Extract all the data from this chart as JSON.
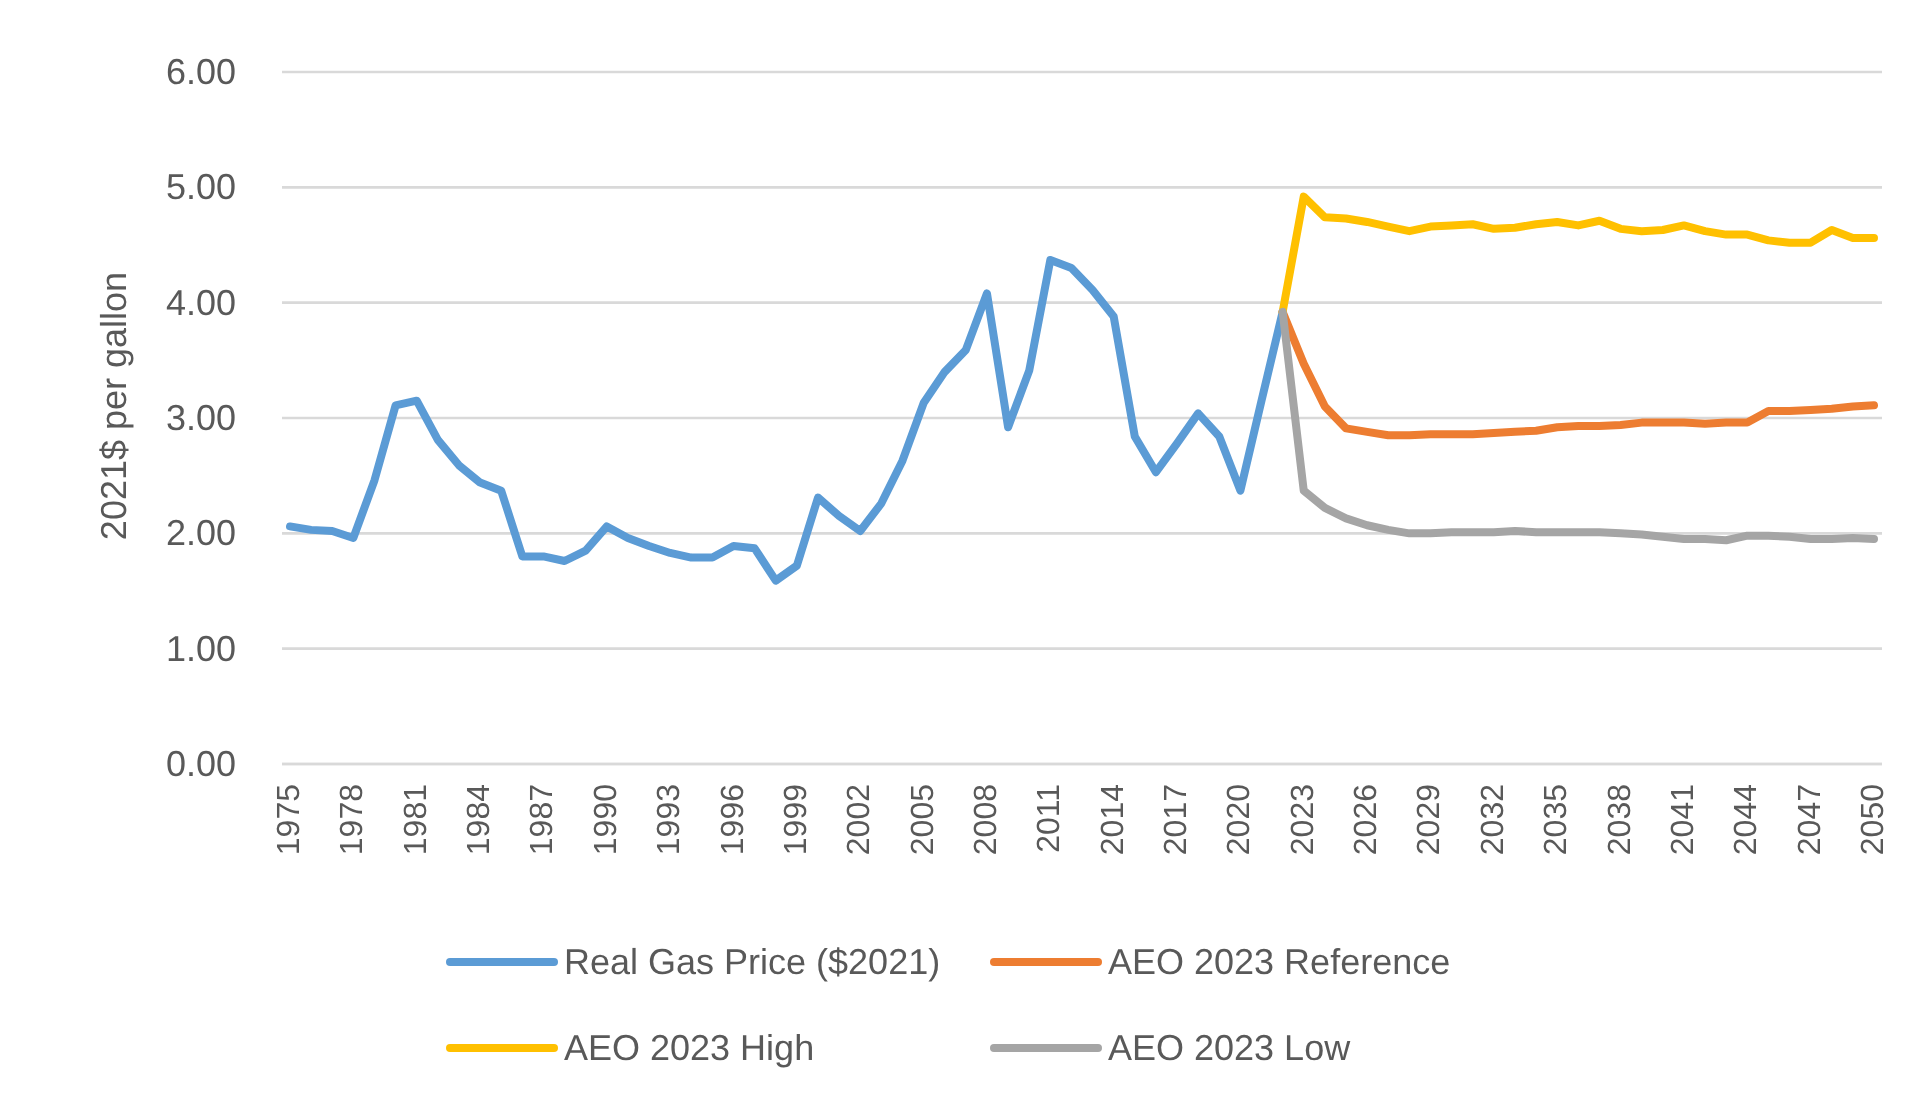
{
  "chart_data": {
    "type": "line",
    "ylabel": "2021$ per gallon",
    "categories": [
      "1975",
      null,
      null,
      "1978",
      null,
      null,
      "1981",
      null,
      null,
      "1984",
      null,
      null,
      "1987",
      null,
      null,
      "1990",
      null,
      null,
      "1993",
      null,
      null,
      "1996",
      null,
      null,
      "1999",
      null,
      null,
      "2002",
      null,
      null,
      "2005",
      null,
      null,
      "2008",
      null,
      null,
      "2011",
      null,
      null,
      "2014",
      null,
      null,
      "2017",
      null,
      null,
      "2020",
      null,
      null,
      "2023",
      null,
      null,
      "2026",
      null,
      null,
      "2029",
      null,
      null,
      "2032",
      null,
      null,
      "2035",
      null,
      null,
      "2038",
      null,
      null,
      "2041",
      null,
      null,
      "2044",
      null,
      null,
      "2047",
      null,
      null,
      "2050"
    ],
    "series": [
      {
        "name": "Real Gas Price ($2021)",
        "color": "#5b9bd5",
        "values": [
          2.06,
          2.03,
          2.02,
          1.96,
          2.46,
          3.11,
          3.15,
          2.81,
          2.59,
          2.44,
          2.37,
          1.8,
          1.8,
          1.76,
          1.85,
          2.06,
          1.96,
          1.89,
          1.83,
          1.79,
          1.79,
          1.89,
          1.87,
          1.59,
          1.72,
          2.31,
          2.15,
          2.02,
          2.26,
          2.63,
          3.13,
          3.4,
          3.59,
          4.08,
          2.92,
          3.41,
          4.37,
          4.3,
          4.11,
          3.88,
          2.84,
          2.53,
          2.78,
          3.04,
          2.84,
          2.37,
          3.15,
          3.92,
          null,
          null,
          null,
          null,
          null,
          null,
          null,
          null,
          null,
          null,
          null,
          null,
          null,
          null,
          null,
          null,
          null,
          null,
          null,
          null,
          null,
          null,
          null,
          null,
          null,
          null,
          null,
          null
        ]
      },
      {
        "name": "AEO 2023 Reference",
        "color": "#ed7d31",
        "values": [
          null,
          null,
          null,
          null,
          null,
          null,
          null,
          null,
          null,
          null,
          null,
          null,
          null,
          null,
          null,
          null,
          null,
          null,
          null,
          null,
          null,
          null,
          null,
          null,
          null,
          null,
          null,
          null,
          null,
          null,
          null,
          null,
          null,
          null,
          null,
          null,
          null,
          null,
          null,
          null,
          null,
          null,
          null,
          null,
          null,
          null,
          null,
          3.92,
          3.47,
          3.1,
          2.91,
          2.88,
          2.85,
          2.85,
          2.86,
          2.86,
          2.86,
          2.87,
          2.88,
          2.89,
          2.92,
          2.93,
          2.93,
          2.94,
          2.96,
          2.96,
          2.96,
          2.95,
          2.96,
          2.96,
          3.06,
          3.06,
          3.07,
          3.08,
          3.1,
          3.11
        ]
      },
      {
        "name": "AEO 2023 High",
        "color": "#ffc000",
        "values": [
          null,
          null,
          null,
          null,
          null,
          null,
          null,
          null,
          null,
          null,
          null,
          null,
          null,
          null,
          null,
          null,
          null,
          null,
          null,
          null,
          null,
          null,
          null,
          null,
          null,
          null,
          null,
          null,
          null,
          null,
          null,
          null,
          null,
          null,
          null,
          null,
          null,
          null,
          null,
          null,
          null,
          null,
          null,
          null,
          null,
          null,
          null,
          3.92,
          4.92,
          4.74,
          4.73,
          4.7,
          4.66,
          4.62,
          4.66,
          4.67,
          4.68,
          4.64,
          4.65,
          4.68,
          4.7,
          4.67,
          4.71,
          4.64,
          4.62,
          4.63,
          4.67,
          4.62,
          4.59,
          4.59,
          4.54,
          4.52,
          4.52,
          4.63,
          4.56,
          4.56
        ]
      },
      {
        "name": "AEO 2023 Low",
        "color": "#a5a5a5",
        "values": [
          null,
          null,
          null,
          null,
          null,
          null,
          null,
          null,
          null,
          null,
          null,
          null,
          null,
          null,
          null,
          null,
          null,
          null,
          null,
          null,
          null,
          null,
          null,
          null,
          null,
          null,
          null,
          null,
          null,
          null,
          null,
          null,
          null,
          null,
          null,
          null,
          null,
          null,
          null,
          null,
          null,
          null,
          null,
          null,
          null,
          null,
          null,
          3.92,
          2.37,
          2.22,
          2.13,
          2.07,
          2.03,
          2.0,
          2.0,
          2.01,
          2.01,
          2.01,
          2.02,
          2.01,
          2.01,
          2.01,
          2.01,
          2.0,
          1.99,
          1.97,
          1.95,
          1.95,
          1.94,
          1.98,
          1.98,
          1.97,
          1.95,
          1.95,
          1.96,
          1.95
        ]
      }
    ],
    "ylim": [
      0,
      6
    ],
    "yticks": [
      {
        "value": 0,
        "label": "0.00"
      },
      {
        "value": 1,
        "label": "1.00"
      },
      {
        "value": 2,
        "label": "2.00"
      },
      {
        "value": 3,
        "label": "3.00"
      },
      {
        "value": 4,
        "label": "4.00"
      },
      {
        "value": 5,
        "label": "5.00"
      },
      {
        "value": 6,
        "label": "6.00"
      }
    ],
    "grid": "y",
    "legend": "bottom"
  }
}
